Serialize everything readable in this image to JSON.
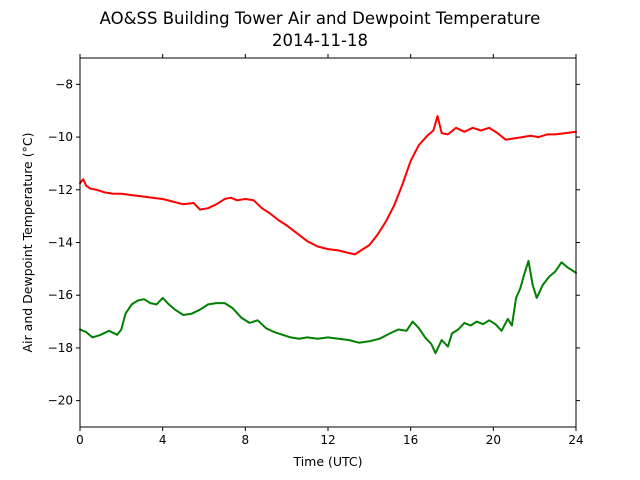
{
  "chart_data": {
    "type": "line",
    "title": "AO&SS Building Tower Air and Dewpoint Temperature",
    "subtitle": "2014-11-18",
    "xlabel": "Time (UTC)",
    "ylabel": "Air and Dewpoint Temperature (°C)",
    "xlim": [
      0,
      24
    ],
    "ylim": [
      -21,
      -7
    ],
    "x_ticks": [
      0,
      4,
      8,
      12,
      16,
      20,
      24
    ],
    "x_tick_labels": [
      "0",
      "4",
      "8",
      "12",
      "16",
      "20",
      "24"
    ],
    "y_ticks": [
      -20,
      -18,
      -16,
      -14,
      -12,
      -10,
      -8
    ],
    "y_tick_labels": [
      "−20",
      "−18",
      "−16",
      "−14",
      "−12",
      "−10",
      "−8"
    ],
    "grid": false,
    "legend": "none",
    "series": [
      {
        "color": "#ff0000",
        "x": [
          0,
          0.15,
          0.3,
          0.5,
          0.8,
          1.2,
          1.6,
          2.0,
          2.5,
          3.0,
          3.5,
          4.0,
          4.5,
          5.0,
          5.5,
          5.8,
          6.2,
          6.6,
          7.0,
          7.3,
          7.6,
          8.0,
          8.4,
          8.8,
          9.2,
          9.6,
          10.0,
          10.5,
          11.0,
          11.5,
          12.0,
          12.5,
          13.0,
          13.3,
          13.6,
          14.0,
          14.4,
          14.8,
          15.2,
          15.6,
          16.0,
          16.4,
          16.8,
          17.1,
          17.3,
          17.5,
          17.8,
          18.2,
          18.6,
          19.0,
          19.4,
          19.8,
          20.2,
          20.6,
          21.0,
          21.4,
          21.8,
          22.2,
          22.6,
          23.0,
          23.5,
          24.0
        ],
        "y": [
          -11.75,
          -11.6,
          -11.85,
          -11.95,
          -12.0,
          -12.1,
          -12.15,
          -12.15,
          -12.2,
          -12.25,
          -12.3,
          -12.35,
          -12.45,
          -12.55,
          -12.5,
          -12.75,
          -12.7,
          -12.55,
          -12.35,
          -12.3,
          -12.4,
          -12.35,
          -12.4,
          -12.7,
          -12.9,
          -13.15,
          -13.35,
          -13.65,
          -13.95,
          -14.15,
          -14.25,
          -14.3,
          -14.4,
          -14.45,
          -14.3,
          -14.1,
          -13.7,
          -13.2,
          -12.6,
          -11.8,
          -10.9,
          -10.3,
          -9.95,
          -9.75,
          -9.2,
          -9.85,
          -9.9,
          -9.65,
          -9.8,
          -9.65,
          -9.75,
          -9.65,
          -9.85,
          -10.1,
          -10.05,
          -10.0,
          -9.95,
          -10.0,
          -9.9,
          -9.9,
          -9.85,
          -9.8
        ]
      },
      {
        "color": "#008000",
        "x": [
          0,
          0.3,
          0.6,
          1.0,
          1.4,
          1.8,
          2.0,
          2.2,
          2.5,
          2.8,
          3.1,
          3.4,
          3.7,
          4.0,
          4.3,
          4.6,
          5.0,
          5.4,
          5.8,
          6.2,
          6.6,
          7.0,
          7.4,
          7.8,
          8.2,
          8.6,
          9.0,
          9.4,
          9.8,
          10.2,
          10.6,
          11.0,
          11.5,
          12.0,
          12.5,
          13.0,
          13.5,
          14.0,
          14.5,
          15.0,
          15.4,
          15.8,
          16.1,
          16.4,
          16.7,
          17.0,
          17.2,
          17.5,
          17.8,
          18.0,
          18.3,
          18.6,
          18.9,
          19.2,
          19.5,
          19.8,
          20.1,
          20.4,
          20.7,
          20.9,
          21.1,
          21.3,
          21.5,
          21.7,
          21.9,
          22.1,
          22.4,
          22.7,
          23.0,
          23.3,
          23.6,
          24.0
        ],
        "y": [
          -17.3,
          -17.4,
          -17.6,
          -17.5,
          -17.35,
          -17.5,
          -17.3,
          -16.7,
          -16.35,
          -16.2,
          -16.15,
          -16.3,
          -16.35,
          -16.1,
          -16.35,
          -16.55,
          -16.75,
          -16.7,
          -16.55,
          -16.35,
          -16.3,
          -16.3,
          -16.5,
          -16.85,
          -17.05,
          -16.95,
          -17.25,
          -17.4,
          -17.5,
          -17.6,
          -17.65,
          -17.6,
          -17.65,
          -17.6,
          -17.65,
          -17.7,
          -17.8,
          -17.75,
          -17.65,
          -17.45,
          -17.3,
          -17.35,
          -17.0,
          -17.25,
          -17.6,
          -17.85,
          -18.2,
          -17.7,
          -17.95,
          -17.45,
          -17.3,
          -17.05,
          -17.15,
          -17.0,
          -17.1,
          -16.95,
          -17.1,
          -17.35,
          -16.9,
          -17.15,
          -16.1,
          -15.75,
          -15.2,
          -14.7,
          -15.6,
          -16.1,
          -15.6,
          -15.3,
          -15.1,
          -14.75,
          -14.95,
          -15.15
        ]
      }
    ]
  }
}
